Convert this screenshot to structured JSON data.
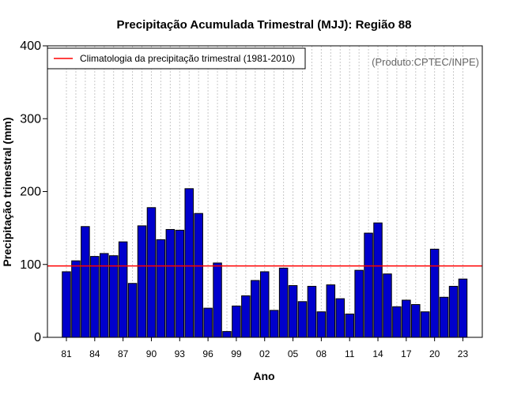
{
  "chart_data": {
    "type": "bar",
    "title": "Precipitação Acumulada Trimestral (MJJ): Região 88",
    "xlabel": "Ano",
    "ylabel": "Precipitação trimestral (mm)",
    "ylim": [
      0,
      400
    ],
    "yticks": [
      0,
      100,
      200,
      300,
      400
    ],
    "years": [
      1981,
      1982,
      1983,
      1984,
      1985,
      1986,
      1987,
      1988,
      1989,
      1990,
      1991,
      1992,
      1993,
      1994,
      1995,
      1996,
      1997,
      1998,
      1999,
      2000,
      2001,
      2002,
      2003,
      2004,
      2005,
      2006,
      2007,
      2008,
      2009,
      2010,
      2011,
      2012,
      2013,
      2014,
      2015,
      2016,
      2017,
      2018,
      2019,
      2020,
      2021,
      2022,
      2023
    ],
    "values": [
      90,
      105,
      152,
      111,
      115,
      112,
      131,
      74,
      153,
      178,
      134,
      148,
      147,
      204,
      170,
      40,
      102,
      8,
      43,
      57,
      78,
      90,
      37,
      95,
      71,
      49,
      70,
      35,
      72,
      53,
      32,
      92,
      143,
      157,
      87,
      42,
      51,
      45,
      35,
      121,
      55,
      70,
      80
    ],
    "xtick_labels": [
      "81",
      "84",
      "87",
      "90",
      "93",
      "96",
      "99",
      "02",
      "05",
      "08",
      "11",
      "14",
      "17",
      "20",
      "23"
    ],
    "xtick_years": [
      1981,
      1984,
      1987,
      1990,
      1993,
      1996,
      1999,
      2002,
      2005,
      2008,
      2011,
      2014,
      2017,
      2020,
      2023
    ],
    "climatology": 98,
    "legend": {
      "label": "Climatologia da precipitação trimestral (1981-2010)",
      "position": "top-left"
    },
    "source_note": "(Produto:CPTEC/INPE)",
    "colors": {
      "bar": "#0000cc",
      "bar_edge": "#000000",
      "climatology_line": "#ff0000",
      "grid": "#c8c8c8"
    }
  }
}
